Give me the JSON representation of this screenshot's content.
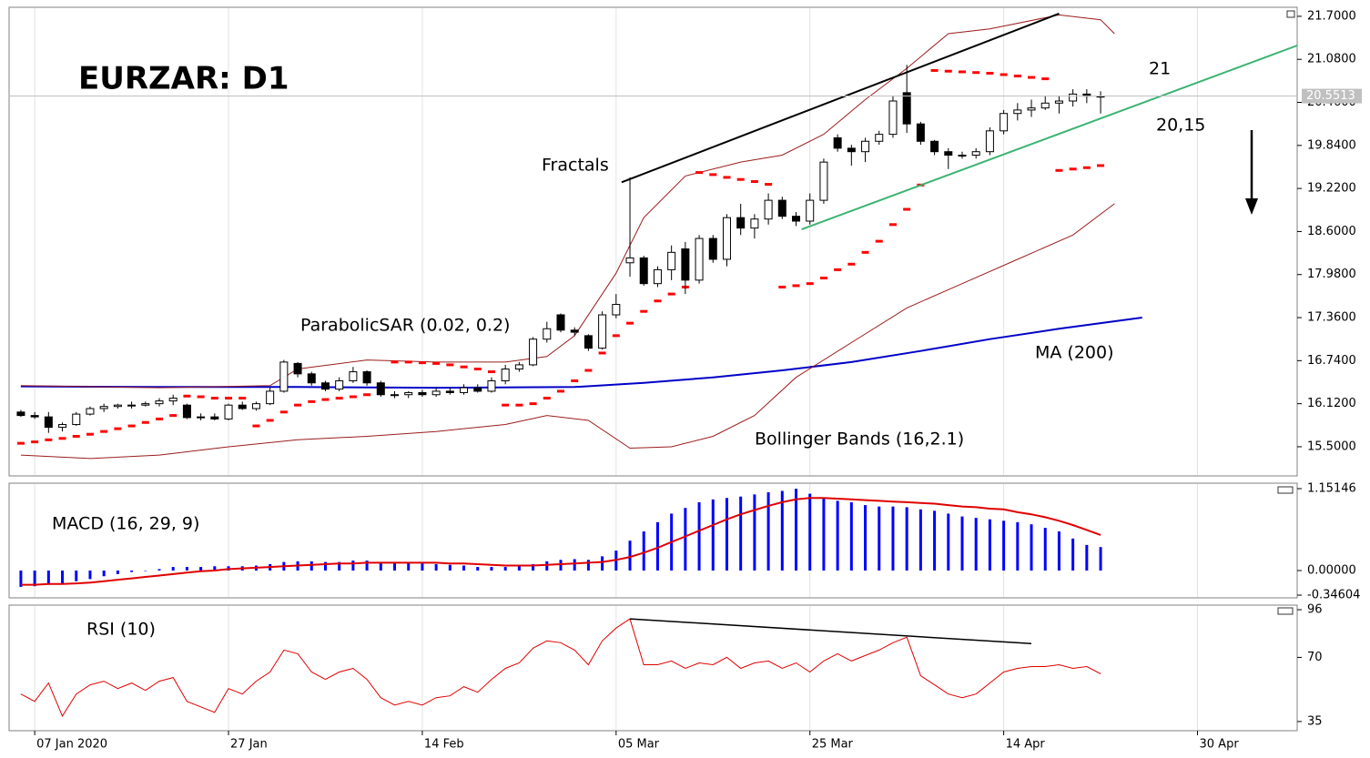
{
  "chart_data": [
    {
      "type": "candlestick",
      "title": "EURZAR: D1",
      "categories": [
        null,
        null,
        null,
        null,
        null,
        null,
        null,
        null,
        null,
        null,
        null,
        null,
        null,
        null,
        null,
        null,
        null,
        null,
        null,
        null,
        null,
        null,
        null,
        null,
        null,
        null,
        null,
        null,
        null,
        null,
        null,
        null,
        null,
        null,
        null,
        null,
        null,
        null,
        null,
        null,
        null,
        null,
        null,
        null,
        null,
        null,
        null,
        null,
        null,
        null,
        null,
        null,
        null,
        null,
        null,
        null,
        null,
        null,
        null,
        null,
        null,
        null,
        null,
        null,
        null,
        null,
        null,
        null,
        null,
        null,
        null,
        null,
        null,
        null,
        null,
        null,
        null,
        null,
        null
      ],
      "open": [
        16.0,
        15.95,
        15.93,
        15.78,
        15.82,
        15.97,
        16.05,
        16.08,
        16.1,
        16.1,
        16.12,
        16.16,
        16.1,
        15.92,
        15.93,
        15.9,
        16.1,
        16.05,
        16.12,
        16.3,
        16.7,
        16.55,
        16.42,
        16.33,
        16.45,
        16.58,
        16.42,
        16.25,
        16.25,
        16.28,
        16.25,
        16.3,
        16.28,
        16.35,
        16.3,
        16.45,
        16.62,
        16.68,
        17.05,
        17.4,
        17.18,
        17.1,
        16.92,
        17.4,
        18.15,
        18.22,
        17.85,
        18.05,
        18.35,
        17.9,
        18.5,
        18.2,
        18.8,
        18.65,
        18.78,
        19.05,
        18.82,
        18.75,
        19.05,
        19.95,
        19.8,
        19.75,
        19.9,
        20.0,
        20.6,
        20.15,
        19.9,
        19.75,
        19.7,
        19.7,
        19.75,
        20.05,
        20.3,
        20.35,
        20.38,
        20.45,
        20.48,
        20.58,
        20.55
      ],
      "high": [
        16.03,
        16.0,
        16.0,
        15.85,
        16.0,
        16.08,
        16.12,
        16.12,
        16.15,
        16.15,
        16.2,
        16.25,
        16.12,
        15.98,
        15.98,
        16.12,
        16.15,
        16.15,
        16.35,
        16.75,
        16.72,
        16.58,
        16.45,
        16.5,
        16.65,
        16.6,
        16.45,
        16.3,
        16.3,
        16.32,
        16.35,
        16.35,
        16.4,
        16.4,
        16.5,
        16.68,
        16.72,
        17.08,
        17.3,
        17.42,
        17.22,
        17.12,
        17.45,
        17.7,
        19.38,
        18.25,
        18.1,
        18.4,
        18.45,
        18.55,
        18.55,
        18.85,
        19.0,
        18.85,
        19.15,
        19.1,
        18.88,
        19.15,
        19.65,
        20.0,
        19.85,
        19.95,
        20.05,
        20.55,
        21.0,
        20.18,
        19.92,
        19.8,
        19.75,
        19.8,
        20.1,
        20.35,
        20.45,
        20.5,
        20.55,
        20.55,
        20.65,
        20.65,
        20.62
      ],
      "low": [
        15.93,
        15.9,
        15.7,
        15.72,
        15.8,
        15.95,
        16.0,
        16.05,
        16.05,
        16.08,
        16.08,
        16.1,
        15.9,
        15.88,
        15.88,
        15.88,
        16.03,
        16.02,
        16.1,
        16.28,
        16.5,
        16.38,
        16.3,
        16.3,
        16.42,
        16.38,
        16.22,
        16.2,
        16.2,
        16.22,
        16.22,
        16.25,
        16.25,
        16.28,
        16.28,
        16.4,
        16.58,
        16.66,
        17.0,
        17.15,
        17.1,
        16.88,
        16.9,
        17.35,
        17.95,
        17.82,
        17.8,
        17.9,
        17.7,
        17.85,
        18.15,
        18.1,
        18.55,
        18.5,
        18.7,
        18.78,
        18.68,
        18.7,
        19.0,
        19.75,
        19.55,
        19.6,
        19.85,
        19.95,
        20.02,
        19.85,
        19.7,
        19.5,
        19.65,
        19.65,
        19.7,
        20.0,
        20.2,
        20.25,
        20.35,
        20.3,
        20.4,
        20.45,
        20.3
      ],
      "close": [
        15.95,
        15.93,
        15.78,
        15.82,
        15.97,
        16.05,
        16.08,
        16.1,
        16.1,
        16.12,
        16.16,
        16.2,
        15.92,
        15.93,
        15.9,
        16.1,
        16.05,
        16.12,
        16.3,
        16.72,
        16.55,
        16.42,
        16.33,
        16.45,
        16.58,
        16.42,
        16.25,
        16.25,
        16.28,
        16.25,
        16.3,
        16.28,
        16.35,
        16.3,
        16.45,
        16.62,
        16.68,
        17.05,
        17.2,
        17.18,
        17.15,
        16.92,
        17.4,
        17.55,
        18.22,
        17.85,
        18.05,
        18.3,
        17.9,
        18.5,
        18.2,
        18.8,
        18.65,
        18.78,
        19.05,
        18.82,
        18.75,
        19.05,
        19.6,
        19.8,
        19.75,
        19.9,
        20.0,
        20.48,
        20.15,
        19.9,
        19.75,
        19.7,
        19.7,
        19.75,
        20.05,
        20.3,
        20.35,
        20.38,
        20.45,
        20.48,
        20.58,
        20.55,
        20.55
      ],
      "up_color": "#ffffff",
      "down_color": "#000000",
      "sar": {
        "name": "ParabolicSAR (0.02, 0.2)",
        "color": "#ff0000",
        "values": [
          15.55,
          15.57,
          15.6,
          15.62,
          15.65,
          15.68,
          15.72,
          15.76,
          15.8,
          15.85,
          15.9,
          15.95,
          16.23,
          16.22,
          16.2,
          16.2,
          16.2,
          15.8,
          15.88,
          16.0,
          16.1,
          16.15,
          16.18,
          16.2,
          16.22,
          16.25,
          16.28,
          16.72,
          16.72,
          16.71,
          16.7,
          16.68,
          16.65,
          16.62,
          16.58,
          16.1,
          16.1,
          16.12,
          16.2,
          16.3,
          16.45,
          16.6,
          16.85,
          17.1,
          17.28,
          17.45,
          17.6,
          17.7,
          17.8,
          19.45,
          19.42,
          19.38,
          19.35,
          19.32,
          19.28,
          17.8,
          17.82,
          17.85,
          17.93,
          18.05,
          18.13,
          18.3,
          18.46,
          18.7,
          18.92,
          19.27,
          20.92,
          20.91,
          20.9,
          20.89,
          20.88,
          20.86,
          20.84,
          20.82,
          20.8,
          19.48,
          19.5,
          19.52,
          19.55
        ]
      },
      "ma": {
        "name": "MA (200)",
        "color": "#0000c8",
        "x": [
          0,
          10,
          20,
          30,
          40,
          45,
          50,
          55,
          60,
          65,
          70,
          75,
          81
        ],
        "values": [
          16.37,
          16.36,
          16.36,
          16.35,
          16.36,
          16.42,
          16.5,
          16.6,
          16.72,
          16.88,
          17.05,
          17.2,
          17.36
        ]
      },
      "bollinger": {
        "name": "Bollinger Bands (16,2.1)",
        "color": "#9b1c1c",
        "x_upper": [
          0,
          10,
          18,
          20,
          25,
          30,
          35,
          38,
          40,
          43,
          45,
          48,
          52,
          55,
          58,
          61,
          64,
          67,
          70,
          75,
          78,
          79
        ],
        "upper": [
          16.38,
          16.35,
          16.38,
          16.62,
          16.75,
          16.72,
          16.72,
          16.8,
          17.1,
          18.0,
          18.8,
          19.4,
          19.6,
          19.7,
          20.0,
          20.5,
          20.95,
          21.45,
          21.52,
          21.72,
          21.65,
          21.45
        ],
        "x_lower": [
          0,
          5,
          10,
          15,
          20,
          25,
          30,
          35,
          38,
          41,
          44,
          47,
          50,
          53,
          56,
          60,
          64,
          68,
          72,
          76,
          79
        ],
        "lower": [
          15.38,
          15.33,
          15.38,
          15.5,
          15.6,
          15.65,
          15.72,
          15.82,
          15.95,
          15.88,
          15.48,
          15.5,
          15.65,
          15.95,
          16.5,
          17.0,
          17.5,
          17.85,
          18.2,
          18.55,
          19.0
        ]
      },
      "trendlines": [
        {
          "color": "#000000",
          "x": [
            43.4,
            75
          ],
          "values": [
            19.31,
            21.74
          ]
        },
        {
          "color": "#3cb371",
          "x": [
            56.4,
            92.2
          ],
          "values": [
            18.63,
            21.28
          ]
        }
      ],
      "annotations": [
        "Fractals",
        "21",
        "20,15"
      ],
      "last_price": 20.5513,
      "xlim": [
        -0.85,
        92.2
      ],
      "ylim": [
        15.08,
        21.83
      ],
      "yticks": [
        {
          "value": 21.7,
          "label": "21.7000"
        },
        {
          "value": 21.08,
          "label": "21.0800"
        },
        {
          "value": 20.46,
          "label": "20.4600"
        },
        {
          "value": 19.84,
          "label": "19.8400"
        },
        {
          "value": 19.22,
          "label": "19.2200"
        },
        {
          "value": 18.6,
          "label": "18.6000"
        },
        {
          "value": 17.98,
          "label": "17.9800"
        },
        {
          "value": 17.36,
          "label": "17.3600"
        },
        {
          "value": 16.74,
          "label": "16.7400"
        },
        {
          "value": 16.12,
          "label": "16.1200"
        },
        {
          "value": 15.5,
          "label": "15.5000"
        }
      ]
    },
    {
      "type": "bar",
      "title": "MACD (16, 29, 9)",
      "categories": [
        null,
        null,
        null,
        null,
        null,
        null,
        null,
        null,
        null,
        null,
        null,
        null,
        null,
        null,
        null,
        null,
        null,
        null,
        null,
        null,
        null,
        null,
        null,
        null,
        null,
        null,
        null,
        null,
        null,
        null,
        null,
        null,
        null,
        null,
        null,
        null,
        null,
        null,
        null,
        null,
        null,
        null,
        null,
        null,
        null,
        null,
        null,
        null,
        null,
        null,
        null,
        null,
        null,
        null,
        null,
        null,
        null,
        null,
        null,
        null,
        null,
        null,
        null,
        null,
        null,
        null,
        null,
        null,
        null,
        null,
        null,
        null,
        null,
        null,
        null,
        null,
        null,
        null,
        null
      ],
      "values": [
        -0.23,
        -0.22,
        -0.2,
        -0.18,
        -0.15,
        -0.12,
        -0.08,
        -0.05,
        -0.02,
        0.0,
        0.02,
        0.05,
        0.05,
        0.05,
        0.06,
        0.06,
        0.06,
        0.07,
        0.09,
        0.12,
        0.13,
        0.13,
        0.12,
        0.12,
        0.14,
        0.14,
        0.12,
        0.12,
        0.11,
        0.1,
        0.09,
        0.08,
        0.07,
        0.05,
        0.05,
        0.05,
        0.06,
        0.09,
        0.13,
        0.15,
        0.16,
        0.15,
        0.2,
        0.28,
        0.42,
        0.55,
        0.68,
        0.8,
        0.88,
        0.96,
        1.0,
        1.02,
        1.04,
        1.07,
        1.1,
        1.12,
        1.15,
        1.08,
        1.02,
        0.98,
        0.96,
        0.92,
        0.9,
        0.9,
        0.89,
        0.86,
        0.84,
        0.8,
        0.76,
        0.74,
        0.72,
        0.7,
        0.68,
        0.65,
        0.6,
        0.55,
        0.45,
        0.36,
        0.33
      ],
      "color": "#0000ff",
      "signal": [
        -0.2,
        -0.2,
        -0.19,
        -0.19,
        -0.18,
        -0.17,
        -0.15,
        -0.13,
        -0.11,
        -0.09,
        -0.07,
        -0.05,
        -0.03,
        -0.01,
        0.0,
        0.02,
        0.03,
        0.04,
        0.05,
        0.06,
        0.07,
        0.08,
        0.09,
        0.1,
        0.1,
        0.11,
        0.11,
        0.11,
        0.11,
        0.11,
        0.11,
        0.1,
        0.1,
        0.09,
        0.08,
        0.07,
        0.07,
        0.07,
        0.08,
        0.09,
        0.1,
        0.11,
        0.12,
        0.15,
        0.19,
        0.25,
        0.32,
        0.4,
        0.48,
        0.56,
        0.64,
        0.72,
        0.79,
        0.85,
        0.91,
        0.96,
        1.0,
        1.02,
        1.02,
        1.01,
        1.0,
        0.99,
        0.98,
        0.97,
        0.96,
        0.95,
        0.94,
        0.92,
        0.9,
        0.89,
        0.87,
        0.86,
        0.82,
        0.79,
        0.75,
        0.7,
        0.64,
        0.57,
        0.5
      ],
      "signal_color": "#e00000",
      "xlim": [
        -0.85,
        92.2
      ],
      "ylim": [
        -0.384,
        1.228
      ],
      "yticks": [
        {
          "value": 1.15146,
          "label": "1.15146"
        },
        {
          "value": 0,
          "label": "0.00000"
        },
        {
          "value": -0.34604,
          "label": "-0.34604"
        }
      ]
    },
    {
      "type": "line",
      "title": "RSI (10)",
      "categories": [
        null,
        null,
        null,
        null,
        null,
        null,
        null,
        null,
        null,
        null,
        null,
        null,
        null,
        null,
        null,
        null,
        null,
        null,
        null,
        null,
        null,
        null,
        null,
        null,
        null,
        null,
        null,
        null,
        null,
        null,
        null,
        null,
        null,
        null,
        null,
        null,
        null,
        null,
        null,
        null,
        null,
        null,
        null,
        null,
        null,
        null,
        null,
        null,
        null,
        null,
        null,
        null,
        null,
        null,
        null,
        null,
        null,
        null,
        null,
        null,
        null,
        null,
        null,
        null,
        null,
        null,
        null,
        null,
        null,
        null,
        null,
        null,
        null,
        null,
        null,
        null,
        null,
        null,
        null
      ],
      "values": [
        50,
        46,
        56,
        38,
        50,
        55,
        57,
        53,
        56,
        52,
        57,
        59,
        46,
        43,
        40,
        53,
        50,
        57,
        62,
        74,
        72,
        62,
        58,
        62,
        64,
        58,
        48,
        44,
        46,
        44,
        48,
        49,
        54,
        51,
        58,
        64,
        67,
        75,
        79,
        78,
        74,
        66,
        79,
        86,
        91,
        66,
        66,
        68,
        64,
        67,
        66,
        70,
        64,
        67,
        68,
        64,
        67,
        62,
        68,
        72,
        68,
        71,
        74,
        78,
        81,
        60,
        55,
        50,
        48,
        50,
        56,
        62,
        64,
        65,
        65,
        66,
        64,
        65,
        61
      ],
      "color": "#e00000",
      "trendlines": [
        {
          "color": "#000000",
          "x": [
            44,
            73
          ],
          "values": [
            91,
            77.5
          ]
        }
      ],
      "xlim": [
        -0.85,
        92.2
      ],
      "ylim": [
        30,
        98.5
      ],
      "yticks": [
        96,
        70,
        35
      ],
      "xticks": [
        {
          "value": 1,
          "label": "07 Jan 2020"
        },
        {
          "value": 15,
          "label": "27 Jan"
        },
        {
          "value": 29,
          "label": "14 Feb"
        },
        {
          "value": 43,
          "label": "05 Mar"
        },
        {
          "value": 57,
          "label": "25 Mar"
        },
        {
          "value": 71,
          "label": "14 Apr"
        },
        {
          "value": 85,
          "label": "30 Apr"
        }
      ]
    }
  ]
}
